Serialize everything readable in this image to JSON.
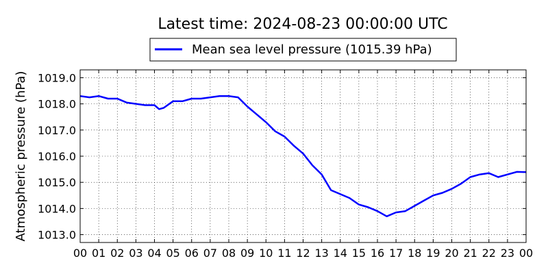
{
  "chart_data": {
    "type": "line",
    "title": "Latest time: 2024-08-23 00:00:00 UTC",
    "ylabel": "Atmospheric pressure (hPa)",
    "xlabel": "",
    "x_ticks": [
      "00",
      "01",
      "02",
      "03",
      "04",
      "05",
      "06",
      "07",
      "08",
      "09",
      "10",
      "11",
      "12",
      "13",
      "14",
      "15",
      "16",
      "17",
      "18",
      "19",
      "20",
      "21",
      "22",
      "23",
      "00"
    ],
    "y_ticks": [
      "1013.0",
      "1014.0",
      "1015.0",
      "1016.0",
      "1017.0",
      "1018.0",
      "1019.0"
    ],
    "xlim": [
      0,
      24
    ],
    "ylim": [
      1012.7,
      1019.3
    ],
    "grid": true,
    "legend_position": "top-center",
    "series": [
      {
        "name": "Mean sea level pressure (1015.39 hPa)",
        "color": "#0000ff",
        "x": [
          0,
          0.5,
          1,
          1.5,
          2,
          2.5,
          3,
          3.5,
          4,
          4.25,
          4.5,
          5,
          5.5,
          6,
          6.5,
          7,
          7.5,
          8,
          8.5,
          9,
          9.5,
          10,
          10.5,
          11,
          11.5,
          12,
          12.5,
          13,
          13.5,
          14,
          14.5,
          15,
          15.5,
          16,
          16.5,
          17,
          17.5,
          18,
          18.5,
          19,
          19.5,
          20,
          20.5,
          21,
          21.5,
          22,
          22.5,
          23,
          23.5,
          24
        ],
        "y": [
          1018.3,
          1018.25,
          1018.3,
          1018.2,
          1018.2,
          1018.05,
          1018.0,
          1017.95,
          1017.95,
          1017.8,
          1017.85,
          1018.1,
          1018.1,
          1018.2,
          1018.2,
          1018.25,
          1018.3,
          1018.3,
          1018.25,
          1017.9,
          1017.6,
          1017.3,
          1016.95,
          1016.75,
          1016.4,
          1016.1,
          1015.65,
          1015.3,
          1014.7,
          1014.55,
          1014.4,
          1014.15,
          1014.05,
          1013.9,
          1013.7,
          1013.85,
          1013.9,
          1014.1,
          1014.3,
          1014.5,
          1014.6,
          1014.75,
          1014.95,
          1015.2,
          1015.3,
          1015.35,
          1015.2,
          1015.3,
          1015.4,
          1015.39
        ]
      }
    ]
  }
}
